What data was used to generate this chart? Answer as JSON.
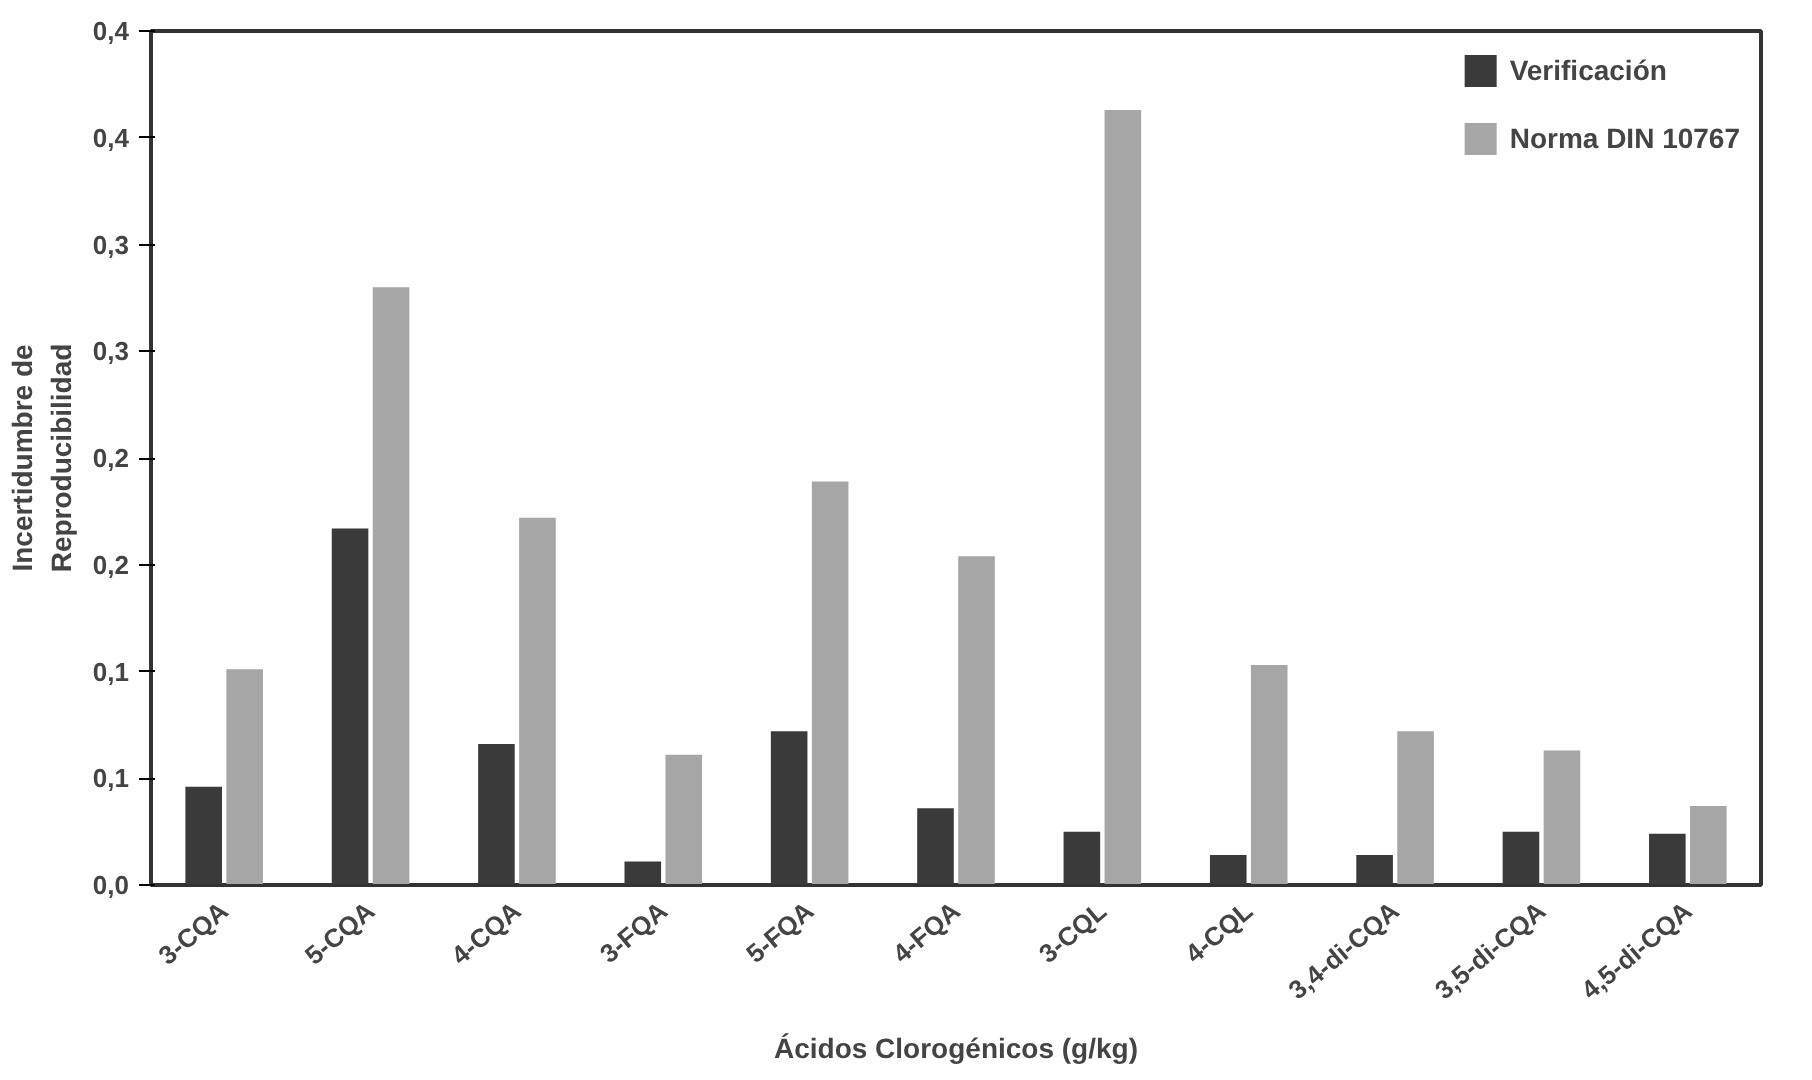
{
  "chart_data": {
    "type": "bar",
    "xlabel": "Ácidos Clorogénicos (g/kg)",
    "ylabel": "Incertidumbre de\nReproducibilidad",
    "categories": [
      "3-CQA",
      "5-CQA",
      "4-CQA",
      "3-FQA",
      "5-FQA",
      "4-FQA",
      "3-CQL",
      "4-CQL",
      "3,4-di-CQA",
      "3,5-di-CQA",
      "4,5-di-CQA"
    ],
    "series": [
      {
        "name": "Verificación",
        "color": "#3a3a3a",
        "values": [
          0.046,
          0.167,
          0.066,
          0.011,
          0.072,
          0.036,
          0.025,
          0.014,
          0.014,
          0.025,
          0.024
        ]
      },
      {
        "name": "Norma DIN 10767",
        "color": "#a6a6a6",
        "values": [
          0.101,
          0.28,
          0.172,
          0.061,
          0.189,
          0.154,
          0.363,
          0.103,
          0.072,
          0.063,
          0.037
        ]
      }
    ],
    "ylim": [
      0,
      0.4
    ],
    "yticks": [
      {
        "value": 0,
        "label": "0,0"
      },
      {
        "value": 0.05,
        "label": "0,1"
      },
      {
        "value": 0.1,
        "label": "0,1"
      },
      {
        "value": 0.15,
        "label": "0,2"
      },
      {
        "value": 0.2,
        "label": "0,2"
      },
      {
        "value": 0.25,
        "label": "0,3"
      },
      {
        "value": 0.3,
        "label": "0,3"
      },
      {
        "value": 0.35,
        "label": "0,4"
      },
      {
        "value": 0.4,
        "label": "0,4"
      }
    ],
    "grid": false,
    "legend": "top right"
  }
}
